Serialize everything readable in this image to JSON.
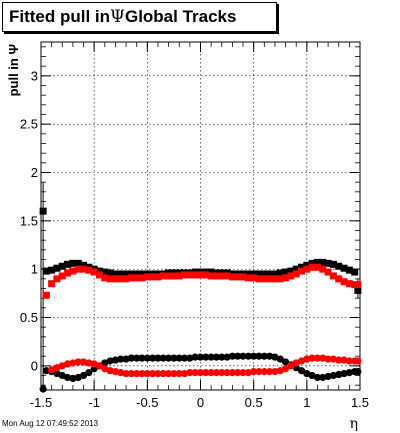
{
  "title": {
    "prefix": "Fitted pull in",
    "symbol": "Ψ",
    "suffix": "Global Tracks"
  },
  "timestamp": "Mon Aug 12 07:49:52 2013",
  "chart_data": {
    "type": "scatter",
    "title": "Fitted pull in Ψ Global Tracks",
    "xlabel": "η",
    "ylabel": "pull in Ψ",
    "xlim": [
      -1.5,
      1.5
    ],
    "ylim": [
      -0.25,
      3.35
    ],
    "grid": true,
    "xticks": [
      -1.5,
      -1,
      -0.5,
      0,
      0.5,
      1,
      1.5
    ],
    "xtick_labels": [
      "-1.5",
      "-1",
      "-0.5",
      "0",
      "0.5",
      "1",
      "1.5"
    ],
    "yticks": [
      0,
      0.5,
      1,
      1.5,
      2,
      2.5,
      3
    ],
    "ytick_labels": [
      "0",
      "0.5",
      "1",
      "1.5",
      "2",
      "2.5",
      "3"
    ],
    "colors": {
      "black": "#000000",
      "red": "#ff0000"
    },
    "series_black": [
      {
        "kind": "mean",
        "color": "black",
        "points": [
          [
            -1.48,
            1.6
          ],
          [
            -1.45,
            0.98
          ],
          [
            -1.4,
            0.99
          ],
          [
            -1.35,
            1.01
          ],
          [
            -1.3,
            1.03
          ],
          [
            -1.25,
            1.05
          ],
          [
            -1.2,
            1.06
          ],
          [
            -1.15,
            1.06
          ],
          [
            -1.1,
            1.04
          ],
          [
            -1.05,
            1.02
          ],
          [
            -1.0,
            1.0
          ],
          [
            -0.95,
            0.98
          ],
          [
            -0.9,
            0.97
          ],
          [
            -0.85,
            0.96
          ],
          [
            -0.8,
            0.95
          ],
          [
            -0.75,
            0.95
          ],
          [
            -0.7,
            0.95
          ],
          [
            -0.65,
            0.95
          ],
          [
            -0.6,
            0.95
          ],
          [
            -0.55,
            0.95
          ],
          [
            -0.5,
            0.95
          ],
          [
            -0.45,
            0.95
          ],
          [
            -0.4,
            0.95
          ],
          [
            -0.35,
            0.95
          ],
          [
            -0.3,
            0.96
          ],
          [
            -0.25,
            0.96
          ],
          [
            -0.2,
            0.96
          ],
          [
            -0.15,
            0.96
          ],
          [
            -0.1,
            0.96
          ],
          [
            -0.05,
            0.97
          ],
          [
            0.0,
            0.97
          ],
          [
            0.05,
            0.97
          ],
          [
            0.1,
            0.97
          ],
          [
            0.15,
            0.96
          ],
          [
            0.2,
            0.96
          ],
          [
            0.25,
            0.96
          ],
          [
            0.3,
            0.95
          ],
          [
            0.35,
            0.95
          ],
          [
            0.4,
            0.95
          ],
          [
            0.45,
            0.95
          ],
          [
            0.5,
            0.95
          ],
          [
            0.55,
            0.95
          ],
          [
            0.6,
            0.95
          ],
          [
            0.65,
            0.95
          ],
          [
            0.7,
            0.95
          ],
          [
            0.75,
            0.96
          ],
          [
            0.8,
            0.97
          ],
          [
            0.85,
            0.98
          ],
          [
            0.9,
            1.0
          ],
          [
            0.95,
            1.02
          ],
          [
            1.0,
            1.04
          ],
          [
            1.05,
            1.06
          ],
          [
            1.1,
            1.07
          ],
          [
            1.15,
            1.07
          ],
          [
            1.2,
            1.06
          ],
          [
            1.25,
            1.05
          ],
          [
            1.3,
            1.03
          ],
          [
            1.35,
            1.01
          ],
          [
            1.4,
            0.99
          ],
          [
            1.45,
            0.97
          ],
          [
            1.48,
            0.78
          ]
        ]
      },
      {
        "kind": "offset",
        "color": "black",
        "points": [
          [
            -1.48,
            -0.24
          ],
          [
            -1.45,
            -0.05
          ],
          [
            -1.4,
            -0.06
          ],
          [
            -1.35,
            -0.08
          ],
          [
            -1.3,
            -0.1
          ],
          [
            -1.25,
            -0.12
          ],
          [
            -1.2,
            -0.13
          ],
          [
            -1.15,
            -0.12
          ],
          [
            -1.1,
            -0.1
          ],
          [
            -1.05,
            -0.07
          ],
          [
            -1.0,
            -0.03
          ],
          [
            -0.95,
            0.0
          ],
          [
            -0.9,
            0.03
          ],
          [
            -0.85,
            0.05
          ],
          [
            -0.8,
            0.06
          ],
          [
            -0.75,
            0.07
          ],
          [
            -0.7,
            0.07
          ],
          [
            -0.65,
            0.08
          ],
          [
            -0.6,
            0.08
          ],
          [
            -0.55,
            0.08
          ],
          [
            -0.5,
            0.08
          ],
          [
            -0.45,
            0.08
          ],
          [
            -0.4,
            0.08
          ],
          [
            -0.35,
            0.08
          ],
          [
            -0.3,
            0.08
          ],
          [
            -0.25,
            0.08
          ],
          [
            -0.2,
            0.08
          ],
          [
            -0.15,
            0.08
          ],
          [
            -0.1,
            0.08
          ],
          [
            -0.05,
            0.09
          ],
          [
            0.0,
            0.09
          ],
          [
            0.05,
            0.09
          ],
          [
            0.1,
            0.09
          ],
          [
            0.15,
            0.09
          ],
          [
            0.2,
            0.09
          ],
          [
            0.25,
            0.09
          ],
          [
            0.3,
            0.1
          ],
          [
            0.35,
            0.1
          ],
          [
            0.4,
            0.1
          ],
          [
            0.45,
            0.1
          ],
          [
            0.5,
            0.1
          ],
          [
            0.55,
            0.1
          ],
          [
            0.6,
            0.1
          ],
          [
            0.65,
            0.1
          ],
          [
            0.7,
            0.09
          ],
          [
            0.75,
            0.07
          ],
          [
            0.8,
            0.04
          ],
          [
            0.85,
            0.01
          ],
          [
            0.9,
            -0.02
          ],
          [
            0.95,
            -0.05
          ],
          [
            1.0,
            -0.08
          ],
          [
            1.05,
            -0.1
          ],
          [
            1.1,
            -0.12
          ],
          [
            1.15,
            -0.12
          ],
          [
            1.2,
            -0.11
          ],
          [
            1.25,
            -0.1
          ],
          [
            1.3,
            -0.09
          ],
          [
            1.35,
            -0.08
          ],
          [
            1.4,
            -0.07
          ],
          [
            1.45,
            -0.06
          ],
          [
            1.48,
            -0.06
          ]
        ]
      }
    ],
    "series_red": [
      {
        "kind": "mean",
        "color": "red",
        "points": [
          [
            -1.45,
            0.73
          ],
          [
            -1.4,
            0.85
          ],
          [
            -1.35,
            0.9
          ],
          [
            -1.3,
            0.93
          ],
          [
            -1.25,
            0.96
          ],
          [
            -1.2,
            0.98
          ],
          [
            -1.15,
            1.0
          ],
          [
            -1.1,
            1.0
          ],
          [
            -1.05,
            0.99
          ],
          [
            -1.0,
            0.97
          ],
          [
            -0.95,
            0.94
          ],
          [
            -0.9,
            0.91
          ],
          [
            -0.85,
            0.9
          ],
          [
            -0.8,
            0.9
          ],
          [
            -0.75,
            0.9
          ],
          [
            -0.7,
            0.9
          ],
          [
            -0.65,
            0.91
          ],
          [
            -0.6,
            0.91
          ],
          [
            -0.55,
            0.91
          ],
          [
            -0.5,
            0.92
          ],
          [
            -0.45,
            0.92
          ],
          [
            -0.4,
            0.92
          ],
          [
            -0.35,
            0.93
          ],
          [
            -0.3,
            0.93
          ],
          [
            -0.25,
            0.93
          ],
          [
            -0.2,
            0.93
          ],
          [
            -0.15,
            0.94
          ],
          [
            -0.1,
            0.94
          ],
          [
            -0.05,
            0.94
          ],
          [
            0.0,
            0.94
          ],
          [
            0.05,
            0.94
          ],
          [
            0.1,
            0.93
          ],
          [
            0.15,
            0.93
          ],
          [
            0.2,
            0.93
          ],
          [
            0.25,
            0.93
          ],
          [
            0.3,
            0.92
          ],
          [
            0.35,
            0.92
          ],
          [
            0.4,
            0.92
          ],
          [
            0.45,
            0.91
          ],
          [
            0.5,
            0.91
          ],
          [
            0.55,
            0.9
          ],
          [
            0.6,
            0.9
          ],
          [
            0.65,
            0.9
          ],
          [
            0.7,
            0.9
          ],
          [
            0.75,
            0.9
          ],
          [
            0.8,
            0.91
          ],
          [
            0.85,
            0.93
          ],
          [
            0.9,
            0.95
          ],
          [
            0.95,
            0.98
          ],
          [
            1.0,
            1.0
          ],
          [
            1.05,
            1.02
          ],
          [
            1.1,
            1.02
          ],
          [
            1.15,
            1.0
          ],
          [
            1.2,
            0.97
          ],
          [
            1.25,
            0.93
          ],
          [
            1.3,
            0.9
          ],
          [
            1.35,
            0.87
          ],
          [
            1.4,
            0.85
          ],
          [
            1.45,
            0.84
          ],
          [
            1.48,
            0.84
          ]
        ]
      },
      {
        "kind": "offset",
        "color": "red",
        "points": [
          [
            -1.4,
            -0.04
          ],
          [
            -1.35,
            -0.02
          ],
          [
            -1.3,
            0.0
          ],
          [
            -1.25,
            0.02
          ],
          [
            -1.2,
            0.03
          ],
          [
            -1.15,
            0.04
          ],
          [
            -1.1,
            0.04
          ],
          [
            -1.05,
            0.03
          ],
          [
            -1.0,
            0.02
          ],
          [
            -0.95,
            0.0
          ],
          [
            -0.9,
            -0.03
          ],
          [
            -0.85,
            -0.05
          ],
          [
            -0.8,
            -0.06
          ],
          [
            -0.75,
            -0.07
          ],
          [
            -0.7,
            -0.08
          ],
          [
            -0.65,
            -0.08
          ],
          [
            -0.6,
            -0.08
          ],
          [
            -0.55,
            -0.08
          ],
          [
            -0.5,
            -0.08
          ],
          [
            -0.45,
            -0.08
          ],
          [
            -0.4,
            -0.08
          ],
          [
            -0.35,
            -0.08
          ],
          [
            -0.3,
            -0.08
          ],
          [
            -0.25,
            -0.08
          ],
          [
            -0.2,
            -0.08
          ],
          [
            -0.15,
            -0.08
          ],
          [
            -0.1,
            -0.07
          ],
          [
            -0.05,
            -0.07
          ],
          [
            0.0,
            -0.07
          ],
          [
            0.05,
            -0.07
          ],
          [
            0.1,
            -0.07
          ],
          [
            0.15,
            -0.07
          ],
          [
            0.2,
            -0.07
          ],
          [
            0.25,
            -0.07
          ],
          [
            0.3,
            -0.07
          ],
          [
            0.35,
            -0.07
          ],
          [
            0.4,
            -0.07
          ],
          [
            0.45,
            -0.07
          ],
          [
            0.5,
            -0.06
          ],
          [
            0.55,
            -0.06
          ],
          [
            0.6,
            -0.06
          ],
          [
            0.65,
            -0.06
          ],
          [
            0.7,
            -0.06
          ],
          [
            0.75,
            -0.05
          ],
          [
            0.8,
            -0.03
          ],
          [
            0.85,
            0.0
          ],
          [
            0.9,
            0.03
          ],
          [
            0.95,
            0.05
          ],
          [
            1.0,
            0.07
          ],
          [
            1.05,
            0.08
          ],
          [
            1.1,
            0.08
          ],
          [
            1.15,
            0.08
          ],
          [
            1.2,
            0.07
          ],
          [
            1.25,
            0.07
          ],
          [
            1.3,
            0.06
          ],
          [
            1.35,
            0.06
          ],
          [
            1.4,
            0.05
          ],
          [
            1.45,
            0.05
          ],
          [
            1.48,
            0.05
          ]
        ]
      }
    ]
  }
}
